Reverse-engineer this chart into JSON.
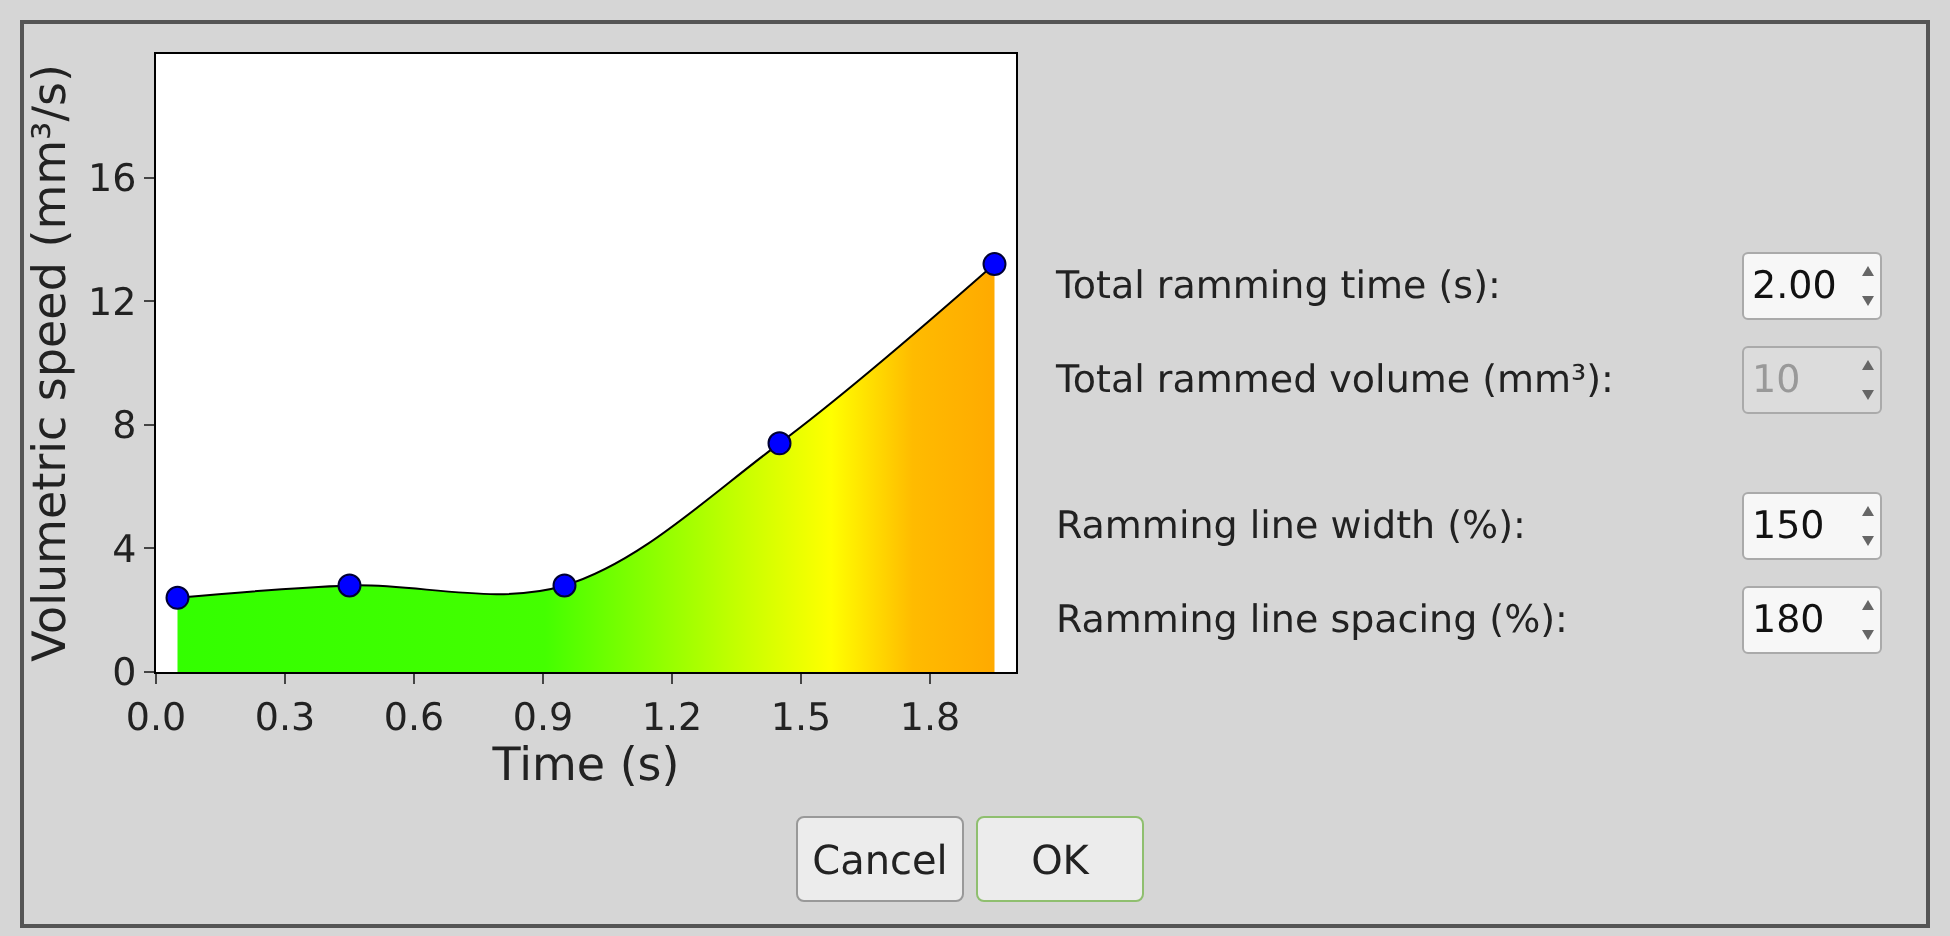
{
  "chart_data": [
    {
      "type": "area",
      "xlabel": "Time (s)",
      "ylabel": "Volumetric speed (mm³/s)",
      "x": [
        0.05,
        0.45,
        0.95,
        1.45,
        1.95
      ],
      "series": [
        {
          "color": "#0000ff",
          "values": [
            2.4,
            2.8,
            2.8,
            7.4,
            13.2
          ]
        }
      ],
      "xlim": [
        0,
        2
      ],
      "xticks": [
        {
          "value": 0,
          "label": "0.0"
        },
        0.3,
        0.6,
        0.9,
        1.2,
        1.5,
        1.8
      ],
      "ylim": [
        0,
        20
      ],
      "yticks": [
        0,
        4,
        8,
        12,
        16
      ],
      "grid": false,
      "marker": "circle"
    },
    {
      "type": "other",
      "annotations": [
        "Total ramming time (s):",
        "2.00",
        "Total rammed volume (mm³):",
        "10",
        "Ramming line width (%):",
        "150",
        "Ramming line spacing (%):",
        "180"
      ]
    },
    {
      "type": "other",
      "annotations": [
        "Cancel",
        "OK"
      ]
    }
  ]
}
